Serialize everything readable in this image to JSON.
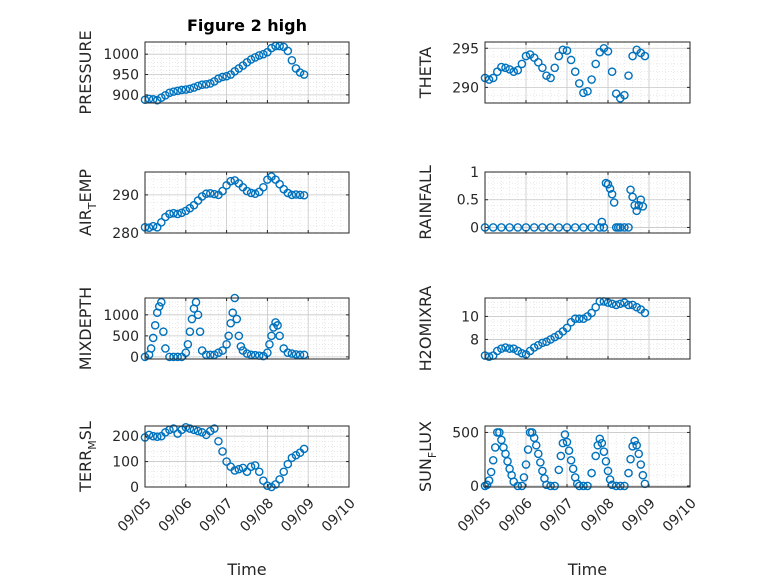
{
  "chart_data": [
    {
      "type": "scatter",
      "title": "Figure 2 high",
      "ylabel": "PRESSURE",
      "xlabel": "",
      "xlim": [
        0,
        5
      ],
      "ylim": [
        880,
        1030
      ],
      "yticks": [
        900,
        950,
        1000
      ],
      "ytick_labels": [
        "900",
        "950",
        "1000"
      ],
      "xtick_labels": [],
      "grid": true,
      "minor_grid": true,
      "color": "#0072BD",
      "x": [
        0.0,
        0.1,
        0.2,
        0.3,
        0.4,
        0.5,
        0.6,
        0.7,
        0.8,
        0.9,
        1.0,
        1.1,
        1.2,
        1.3,
        1.4,
        1.5,
        1.6,
        1.7,
        1.8,
        1.9,
        2.0,
        2.1,
        2.2,
        2.3,
        2.4,
        2.5,
        2.6,
        2.7,
        2.8,
        2.9,
        3.0,
        3.1,
        3.2,
        3.3,
        3.4,
        3.5,
        3.6,
        3.7,
        3.8,
        3.9
      ],
      "y": [
        888,
        890,
        889,
        887,
        893,
        899,
        905,
        908,
        910,
        912,
        913,
        915,
        918,
        922,
        925,
        926,
        928,
        933,
        940,
        944,
        946,
        950,
        958,
        965,
        972,
        980,
        987,
        992,
        997,
        1000,
        1005,
        1015,
        1020,
        1020,
        1018,
        1008,
        985,
        965,
        955,
        950
      ]
    },
    {
      "type": "scatter",
      "title": "",
      "ylabel": "THETA",
      "xlabel": "",
      "xlim": [
        0,
        5
      ],
      "ylim": [
        288,
        295.8
      ],
      "yticks": [
        290,
        295
      ],
      "ytick_labels": [
        "290",
        "295"
      ],
      "xtick_labels": [],
      "grid": true,
      "minor_grid": true,
      "color": "#0072BD",
      "x": [
        0.0,
        0.1,
        0.2,
        0.3,
        0.4,
        0.5,
        0.6,
        0.7,
        0.8,
        0.9,
        1.0,
        1.1,
        1.2,
        1.3,
        1.4,
        1.5,
        1.6,
        1.7,
        1.8,
        1.9,
        2.0,
        2.1,
        2.2,
        2.3,
        2.4,
        2.5,
        2.6,
        2.7,
        2.8,
        2.9,
        3.0,
        3.1,
        3.2,
        3.3,
        3.4,
        3.5,
        3.6,
        3.7,
        3.8,
        3.9
      ],
      "y": [
        291.2,
        291.0,
        291.2,
        292.0,
        292.6,
        292.5,
        292.3,
        292.0,
        292.2,
        293.0,
        294.0,
        294.2,
        293.8,
        293.2,
        292.5,
        291.5,
        291.2,
        292.5,
        294.0,
        294.8,
        294.7,
        293.5,
        292.0,
        290.5,
        289.3,
        289.5,
        291.0,
        293.0,
        294.5,
        295.0,
        294.6,
        292.0,
        289.2,
        288.6,
        289.0,
        291.5,
        294.0,
        294.8,
        294.4,
        294.0
      ]
    },
    {
      "type": "scatter",
      "title": "",
      "ylabel": "AIR_TEMP",
      "ylabel_base": "AIR",
      "ylabel_sub": "T",
      "ylabel_rest": "EMP",
      "xlabel": "",
      "xlim": [
        0,
        5
      ],
      "ylim": [
        280,
        296
      ],
      "yticks": [
        280,
        290
      ],
      "ytick_labels": [
        "280",
        "290"
      ],
      "xtick_labels": [],
      "grid": true,
      "minor_grid": true,
      "color": "#0072BD",
      "x": [
        0.0,
        0.1,
        0.2,
        0.3,
        0.4,
        0.5,
        0.6,
        0.7,
        0.8,
        0.9,
        1.0,
        1.1,
        1.2,
        1.3,
        1.4,
        1.5,
        1.6,
        1.7,
        1.8,
        1.9,
        2.0,
        2.1,
        2.2,
        2.3,
        2.4,
        2.5,
        2.6,
        2.7,
        2.8,
        2.9,
        3.0,
        3.1,
        3.2,
        3.3,
        3.4,
        3.5,
        3.6,
        3.7,
        3.8,
        3.9
      ],
      "y": [
        281.5,
        281.4,
        281.8,
        281.5,
        282.8,
        284.2,
        285.0,
        285.2,
        285.0,
        285.3,
        285.8,
        286.5,
        287.3,
        288.5,
        289.6,
        290.3,
        290.4,
        290.2,
        290.0,
        291.0,
        292.5,
        293.6,
        293.8,
        293.0,
        292.0,
        291.0,
        290.5,
        290.3,
        290.8,
        292.0,
        294.0,
        294.8,
        294.0,
        292.8,
        291.5,
        290.5,
        290.0,
        290.1,
        290.0,
        289.9
      ]
    },
    {
      "type": "scatter",
      "title": "",
      "ylabel": "RAINFALL",
      "xlabel": "",
      "xlim": [
        0,
        5
      ],
      "ylim": [
        -0.1,
        1.0
      ],
      "yticks": [
        0,
        0.5,
        1
      ],
      "ytick_labels": [
        "0",
        "0.5",
        "1"
      ],
      "xtick_labels": [],
      "grid": true,
      "minor_grid": true,
      "color": "#0072BD",
      "x": [
        0.0,
        0.2,
        0.4,
        0.6,
        0.8,
        1.0,
        1.2,
        1.4,
        1.6,
        1.8,
        2.0,
        2.2,
        2.4,
        2.6,
        2.8,
        2.85,
        2.9,
        2.95,
        3.0,
        3.05,
        3.1,
        3.15,
        3.2,
        3.25,
        3.3,
        3.4,
        3.5,
        3.55,
        3.6,
        3.65,
        3.7,
        3.75,
        3.8,
        3.85
      ],
      "y": [
        0,
        0,
        0,
        0,
        0,
        0,
        0,
        0,
        0,
        0,
        0,
        0,
        0,
        0,
        0,
        0.1,
        0,
        0.8,
        0.78,
        0.7,
        0.6,
        0.45,
        0,
        0,
        0,
        0,
        0,
        0.68,
        0.55,
        0.4,
        0.3,
        0.4,
        0.5,
        0.38
      ]
    },
    {
      "type": "scatter",
      "title": "",
      "ylabel": "MIXDEPTH",
      "xlabel": "",
      "xlim": [
        0,
        5
      ],
      "ylim": [
        -50,
        1400
      ],
      "yticks": [
        0,
        500,
        1000
      ],
      "ytick_labels": [
        "0",
        "500",
        "1000"
      ],
      "xtick_labels": [],
      "grid": true,
      "minor_grid": true,
      "color": "#0072BD",
      "x": [
        0.0,
        0.1,
        0.15,
        0.2,
        0.25,
        0.3,
        0.35,
        0.4,
        0.45,
        0.5,
        0.6,
        0.7,
        0.8,
        0.9,
        1.0,
        1.05,
        1.1,
        1.15,
        1.2,
        1.25,
        1.3,
        1.35,
        1.4,
        1.5,
        1.6,
        1.7,
        1.8,
        1.9,
        2.0,
        2.05,
        2.1,
        2.15,
        2.2,
        2.25,
        2.3,
        2.35,
        2.4,
        2.5,
        2.6,
        2.7,
        2.8,
        2.9,
        3.0,
        3.05,
        3.1,
        3.15,
        3.2,
        3.25,
        3.3,
        3.4,
        3.5,
        3.6,
        3.7,
        3.8,
        3.9
      ],
      "y": [
        0,
        50,
        200,
        450,
        750,
        1050,
        1200,
        1300,
        600,
        200,
        0,
        0,
        0,
        0,
        100,
        300,
        600,
        900,
        1150,
        1300,
        1000,
        600,
        150,
        50,
        50,
        50,
        100,
        150,
        300,
        500,
        800,
        1050,
        1400,
        900,
        500,
        250,
        150,
        80,
        50,
        40,
        30,
        20,
        100,
        300,
        500,
        700,
        820,
        750,
        500,
        200,
        100,
        80,
        60,
        50,
        50
      ]
    },
    {
      "type": "scatter",
      "title": "",
      "ylabel": "H2OMIXRA",
      "xlabel": "",
      "xlim": [
        0,
        5
      ],
      "ylim": [
        6.3,
        11.6
      ],
      "yticks": [
        8,
        10
      ],
      "ytick_labels": [
        "8",
        "10"
      ],
      "xtick_labels": [],
      "grid": true,
      "minor_grid": true,
      "color": "#0072BD",
      "x": [
        0.0,
        0.1,
        0.2,
        0.3,
        0.4,
        0.5,
        0.6,
        0.7,
        0.8,
        0.9,
        1.0,
        1.1,
        1.2,
        1.3,
        1.4,
        1.5,
        1.6,
        1.7,
        1.8,
        1.9,
        2.0,
        2.1,
        2.2,
        2.3,
        2.4,
        2.5,
        2.6,
        2.7,
        2.8,
        2.9,
        3.0,
        3.1,
        3.2,
        3.3,
        3.4,
        3.5,
        3.6,
        3.7,
        3.8,
        3.9
      ],
      "y": [
        6.6,
        6.5,
        6.6,
        7.0,
        7.2,
        7.3,
        7.2,
        7.2,
        7.0,
        6.8,
        6.7,
        7.0,
        7.3,
        7.5,
        7.7,
        7.8,
        8.0,
        8.2,
        8.4,
        8.7,
        9.0,
        9.5,
        9.8,
        9.8,
        9.8,
        10.0,
        10.3,
        10.8,
        11.3,
        11.3,
        11.2,
        11.1,
        11.0,
        11.1,
        11.2,
        11.0,
        11.0,
        10.8,
        10.6,
        10.3
      ]
    },
    {
      "type": "scatter",
      "title": "",
      "ylabel": "TERR_MSL",
      "ylabel_base": "TERR",
      "ylabel_sub": "M",
      "ylabel_rest": "SL",
      "xlabel": "Time",
      "xlim": [
        0,
        5
      ],
      "ylim": [
        0,
        240
      ],
      "yticks": [
        0,
        100,
        200
      ],
      "ytick_labels": [
        "0",
        "100",
        "200"
      ],
      "xtick_labels": [
        "09/05",
        "09/06",
        "09/07",
        "09/08",
        "09/09",
        "09/10"
      ],
      "grid": true,
      "minor_grid": true,
      "color": "#0072BD",
      "x": [
        0.0,
        0.1,
        0.2,
        0.3,
        0.4,
        0.5,
        0.6,
        0.7,
        0.8,
        0.9,
        1.0,
        1.1,
        1.2,
        1.3,
        1.4,
        1.5,
        1.6,
        1.7,
        1.8,
        1.9,
        2.0,
        2.1,
        2.2,
        2.3,
        2.4,
        2.5,
        2.6,
        2.7,
        2.8,
        2.9,
        3.0,
        3.1,
        3.2,
        3.3,
        3.4,
        3.5,
        3.6,
        3.7,
        3.8,
        3.9
      ],
      "y": [
        195,
        205,
        200,
        198,
        200,
        215,
        225,
        230,
        210,
        225,
        235,
        230,
        225,
        220,
        215,
        205,
        220,
        230,
        180,
        140,
        100,
        80,
        65,
        70,
        75,
        60,
        80,
        85,
        60,
        25,
        5,
        0,
        10,
        30,
        60,
        90,
        115,
        125,
        135,
        150
      ]
    },
    {
      "type": "scatter",
      "title": "",
      "ylabel": "SUN_FLUX",
      "ylabel_base": "SUN",
      "ylabel_sub": "F",
      "ylabel_rest": "LUX",
      "xlabel": "Time",
      "xlim": [
        0,
        5
      ],
      "ylim": [
        -10,
        560
      ],
      "yticks": [
        0,
        500
      ],
      "ytick_labels": [
        "0",
        "500"
      ],
      "xtick_labels": [
        "09/05",
        "09/06",
        "09/07",
        "09/08",
        "09/09",
        "09/10"
      ],
      "grid": true,
      "minor_grid": true,
      "color": "#0072BD",
      "x": [
        0.0,
        0.05,
        0.1,
        0.15,
        0.2,
        0.25,
        0.3,
        0.35,
        0.4,
        0.45,
        0.5,
        0.55,
        0.6,
        0.65,
        0.7,
        0.8,
        0.9,
        0.95,
        1.0,
        1.05,
        1.1,
        1.15,
        1.2,
        1.25,
        1.3,
        1.35,
        1.4,
        1.45,
        1.5,
        1.6,
        1.7,
        1.8,
        1.85,
        1.9,
        1.95,
        2.0,
        2.05,
        2.1,
        2.15,
        2.2,
        2.25,
        2.3,
        2.4,
        2.5,
        2.6,
        2.7,
        2.75,
        2.8,
        2.85,
        2.9,
        2.95,
        3.0,
        3.05,
        3.1,
        3.2,
        3.3,
        3.4,
        3.5,
        3.55,
        3.6,
        3.65,
        3.7,
        3.75,
        3.8,
        3.85,
        3.9
      ],
      "y": [
        0,
        10,
        50,
        130,
        240,
        360,
        500,
        500,
        430,
        360,
        300,
        230,
        160,
        100,
        40,
        0,
        0,
        80,
        200,
        340,
        500,
        500,
        450,
        380,
        300,
        220,
        140,
        70,
        10,
        0,
        0,
        150,
        280,
        400,
        480,
        410,
        330,
        240,
        160,
        80,
        20,
        0,
        0,
        0,
        120,
        280,
        380,
        440,
        400,
        320,
        230,
        140,
        60,
        10,
        0,
        0,
        0,
        120,
        250,
        370,
        420,
        380,
        300,
        200,
        100,
        20
      ]
    }
  ]
}
